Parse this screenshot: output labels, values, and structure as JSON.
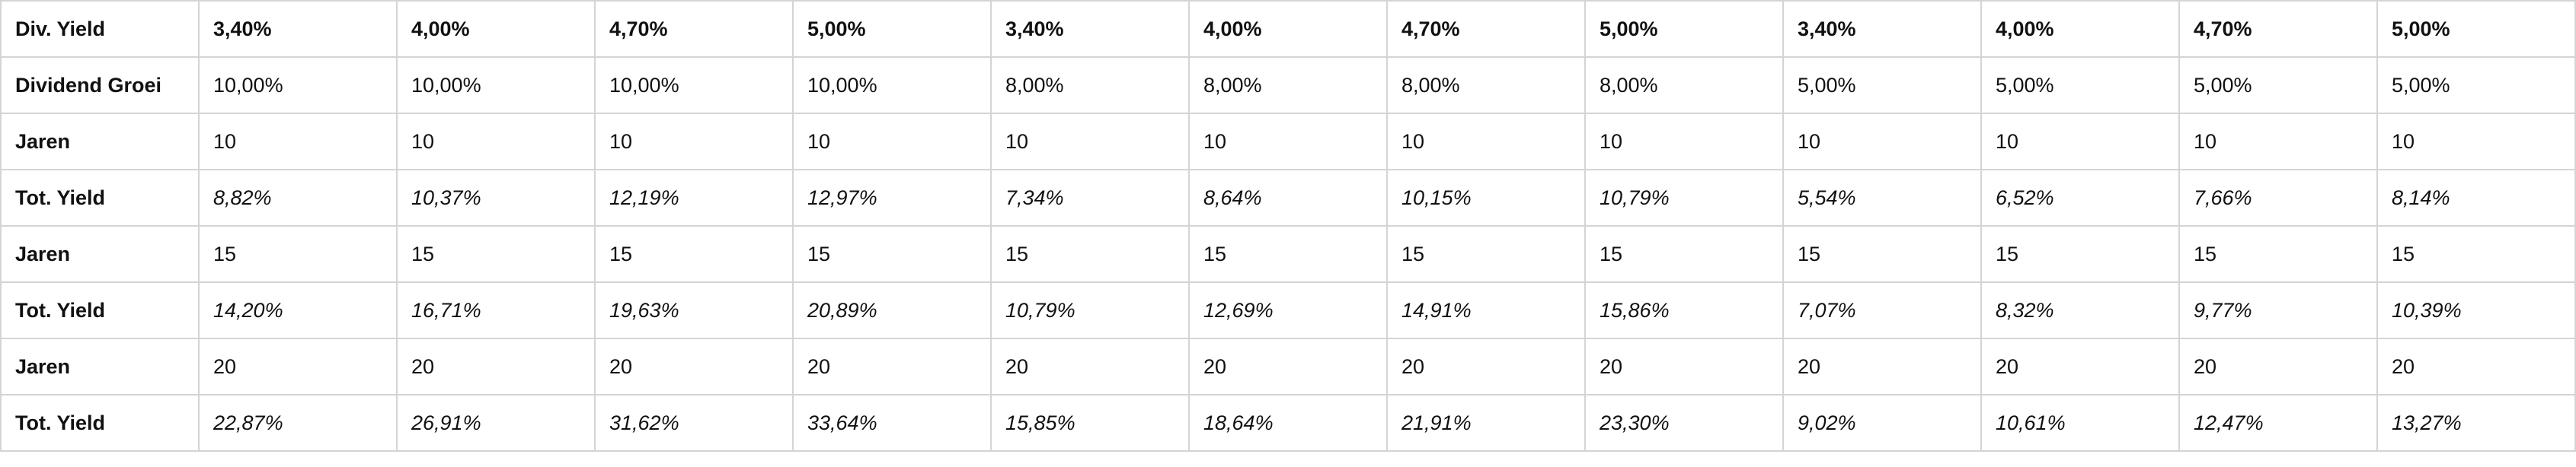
{
  "table": {
    "rows": [
      {
        "label": "Div. Yield",
        "style": "bold",
        "cells": [
          "3,40%",
          "4,00%",
          "4,70%",
          "5,00%",
          "3,40%",
          "4,00%",
          "4,70%",
          "5,00%",
          "3,40%",
          "4,00%",
          "4,70%",
          "5,00%"
        ]
      },
      {
        "label": "Dividend Groei",
        "style": "normal",
        "cells": [
          "10,00%",
          "10,00%",
          "10,00%",
          "10,00%",
          "8,00%",
          "8,00%",
          "8,00%",
          "8,00%",
          "5,00%",
          "5,00%",
          "5,00%",
          "5,00%"
        ]
      },
      {
        "label": "Jaren",
        "style": "normal",
        "cells": [
          "10",
          "10",
          "10",
          "10",
          "10",
          "10",
          "10",
          "10",
          "10",
          "10",
          "10",
          "10"
        ]
      },
      {
        "label": "Tot. Yield",
        "style": "italic",
        "cells": [
          "8,82%",
          "10,37%",
          "12,19%",
          "12,97%",
          "7,34%",
          "8,64%",
          "10,15%",
          "10,79%",
          "5,54%",
          "6,52%",
          "7,66%",
          "8,14%"
        ]
      },
      {
        "label": "Jaren",
        "style": "normal",
        "cells": [
          "15",
          "15",
          "15",
          "15",
          "15",
          "15",
          "15",
          "15",
          "15",
          "15",
          "15",
          "15"
        ]
      },
      {
        "label": "Tot. Yield",
        "style": "italic",
        "cells": [
          "14,20%",
          "16,71%",
          "19,63%",
          "20,89%",
          "10,79%",
          "12,69%",
          "14,91%",
          "15,86%",
          "7,07%",
          "8,32%",
          "9,77%",
          "10,39%"
        ]
      },
      {
        "label": "Jaren",
        "style": "normal",
        "cells": [
          "20",
          "20",
          "20",
          "20",
          "20",
          "20",
          "20",
          "20",
          "20",
          "20",
          "20",
          "20"
        ]
      },
      {
        "label": "Tot. Yield",
        "style": "italic",
        "cells": [
          "22,87%",
          "26,91%",
          "31,62%",
          "33,64%",
          "15,85%",
          "18,64%",
          "21,91%",
          "23,30%",
          "9,02%",
          "10,61%",
          "12,47%",
          "13,27%"
        ]
      }
    ]
  },
  "colors": {
    "border": "#d4d4d4",
    "text": "#111111",
    "background": "#ffffff"
  }
}
